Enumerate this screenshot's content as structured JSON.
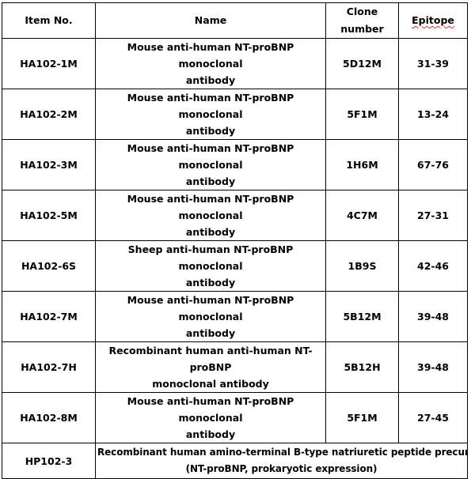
{
  "table": {
    "headers": {
      "item_no": "Item No.",
      "name": "Name",
      "clone_number": "Clone number",
      "epitope": "Epitope"
    },
    "rows": [
      {
        "item_no": "HA102-1M",
        "name_line1": "Mouse anti-human NT-proBNP monoclonal",
        "name_line2": "antibody",
        "clone_number": "5D12M",
        "epitope": "31-39"
      },
      {
        "item_no": "HA102-2M",
        "name_line1": "Mouse anti-human NT-proBNP monoclonal",
        "name_line2": "antibody",
        "clone_number": "5F1M",
        "epitope": "13-24"
      },
      {
        "item_no": "HA102-3M",
        "name_line1": "Mouse anti-human NT-proBNP monoclonal",
        "name_line2": "antibody",
        "clone_number": "1H6M",
        "epitope": "67-76"
      },
      {
        "item_no": "HA102-5M",
        "name_line1": "Mouse anti-human NT-proBNP monoclonal",
        "name_line2": "antibody",
        "clone_number": "4C7M",
        "epitope": "27-31"
      },
      {
        "item_no": "HA102-6S",
        "name_line1": "Sheep anti-human NT-proBNP monoclonal",
        "name_line2": "antibody",
        "clone_number": "1B9S",
        "epitope": "42-46"
      },
      {
        "item_no": "HA102-7M",
        "name_line1": "Mouse anti-human NT-proBNP monoclonal",
        "name_line2": "antibody",
        "clone_number": "5B12M",
        "epitope": "39-48"
      },
      {
        "item_no": "HA102-7H",
        "name_line1": "Recombinant human anti-human NT-proBNP",
        "name_line2": "monoclonal antibody",
        "clone_number": "5B12H",
        "epitope": "39-48"
      },
      {
        "item_no": "HA102-8M",
        "name_line1": "Mouse anti-human NT-proBNP monoclonal",
        "name_line2": "antibody",
        "clone_number": "5F1M",
        "epitope": "27-45"
      },
      {
        "item_no": "HP102-3",
        "name_line1": "Recombinant human amino-terminal B-type natriuretic peptide precursor",
        "name_line2": "(NT-proBNP, prokaryotic expression)",
        "clone_number": "",
        "epitope": ""
      }
    ]
  },
  "colors": {
    "border": "#000000",
    "text": "#000000",
    "spellcheck_underline": "#e0302a",
    "background": "#ffffff"
  }
}
